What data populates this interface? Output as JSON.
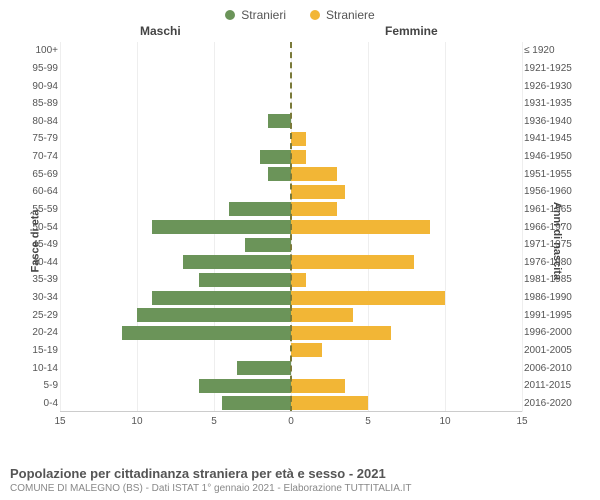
{
  "chart": {
    "type": "population-pyramid",
    "legend": [
      {
        "label": "Stranieri",
        "color": "#6b9459"
      },
      {
        "label": "Straniere",
        "color": "#f2b636"
      }
    ],
    "column_headers": {
      "left": "Maschi",
      "right": "Femmine"
    },
    "y_axis_left_title": "Fasce di età",
    "y_axis_right_title": "Anni di nascita",
    "male_color": "#6b9459",
    "female_color": "#f2b636",
    "background_color": "#ffffff",
    "grid_color": "#eeeeee",
    "center_line_color": "#7a7a3a",
    "x_max": 15,
    "x_ticks": [
      15,
      10,
      5,
      0,
      5,
      10,
      15
    ],
    "label_fontsize": 10,
    "rows": [
      {
        "age": "100+",
        "birth": "≤ 1920",
        "m": 0,
        "f": 0
      },
      {
        "age": "95-99",
        "birth": "1921-1925",
        "m": 0,
        "f": 0
      },
      {
        "age": "90-94",
        "birth": "1926-1930",
        "m": 0,
        "f": 0
      },
      {
        "age": "85-89",
        "birth": "1931-1935",
        "m": 0,
        "f": 0
      },
      {
        "age": "80-84",
        "birth": "1936-1940",
        "m": 1.5,
        "f": 0
      },
      {
        "age": "75-79",
        "birth": "1941-1945",
        "m": 0,
        "f": 1
      },
      {
        "age": "70-74",
        "birth": "1946-1950",
        "m": 2,
        "f": 1
      },
      {
        "age": "65-69",
        "birth": "1951-1955",
        "m": 1.5,
        "f": 3
      },
      {
        "age": "60-64",
        "birth": "1956-1960",
        "m": 0,
        "f": 3.5
      },
      {
        "age": "55-59",
        "birth": "1961-1965",
        "m": 4,
        "f": 3
      },
      {
        "age": "50-54",
        "birth": "1966-1970",
        "m": 9,
        "f": 9
      },
      {
        "age": "45-49",
        "birth": "1971-1975",
        "m": 3,
        "f": 0
      },
      {
        "age": "40-44",
        "birth": "1976-1980",
        "m": 7,
        "f": 8
      },
      {
        "age": "35-39",
        "birth": "1981-1985",
        "m": 6,
        "f": 1
      },
      {
        "age": "30-34",
        "birth": "1986-1990",
        "m": 9,
        "f": 10
      },
      {
        "age": "25-29",
        "birth": "1991-1995",
        "m": 10,
        "f": 4
      },
      {
        "age": "20-24",
        "birth": "1996-2000",
        "m": 11,
        "f": 6.5
      },
      {
        "age": "15-19",
        "birth": "2001-2005",
        "m": 0,
        "f": 2
      },
      {
        "age": "10-14",
        "birth": "2006-2010",
        "m": 3.5,
        "f": 0
      },
      {
        "age": "5-9",
        "birth": "2011-2015",
        "m": 6,
        "f": 3.5
      },
      {
        "age": "0-4",
        "birth": "2016-2020",
        "m": 4.5,
        "f": 5
      }
    ]
  },
  "footer": {
    "title": "Popolazione per cittadinanza straniera per età e sesso - 2021",
    "subtitle": "COMUNE DI MALEGNO (BS) - Dati ISTAT 1° gennaio 2021 - Elaborazione TUTTITALIA.IT"
  }
}
